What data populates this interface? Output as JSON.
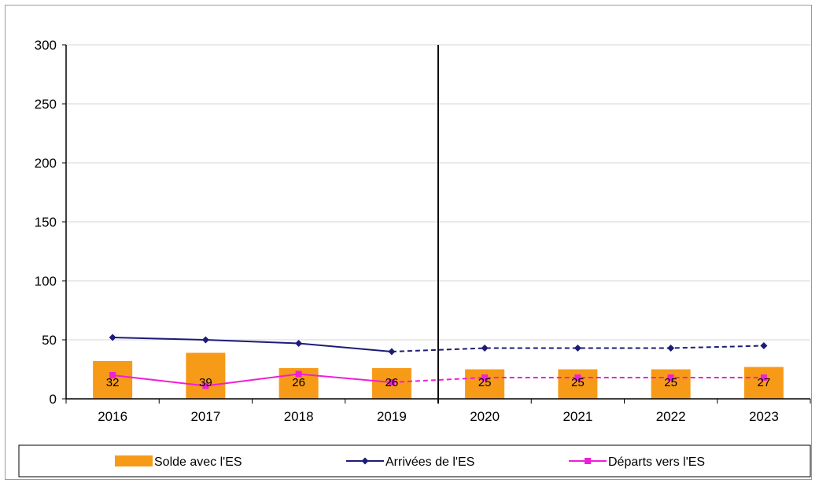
{
  "chart_data": {
    "type": "bar",
    "categories": [
      "2016",
      "2017",
      "2018",
      "2019",
      "2020",
      "2021",
      "2022",
      "2023"
    ],
    "ylim": [
      0,
      300
    ],
    "yticks": [
      0,
      50,
      100,
      150,
      200,
      250,
      300
    ],
    "grid": true,
    "forecast_from_index": 4,
    "series": [
      {
        "name": "Solde avec l'ES",
        "kind": "bar",
        "color": "#f79a17",
        "values": [
          32,
          39,
          26,
          26,
          25,
          25,
          25,
          27
        ],
        "labels": [
          "32",
          "39",
          "26",
          "26",
          "25",
          "25",
          "25",
          "27"
        ]
      },
      {
        "name": "Arrivées de l'ES",
        "kind": "line",
        "marker": "diamond",
        "color": "#1c1c78",
        "values": [
          52,
          50,
          47,
          40,
          43,
          43,
          43,
          45
        ]
      },
      {
        "name": "Départs vers l'ES",
        "kind": "line",
        "marker": "square",
        "color": "#ee1fd8",
        "values": [
          20,
          11,
          21,
          14,
          18,
          18,
          18,
          18
        ]
      }
    ],
    "legend_position": "bottom"
  }
}
